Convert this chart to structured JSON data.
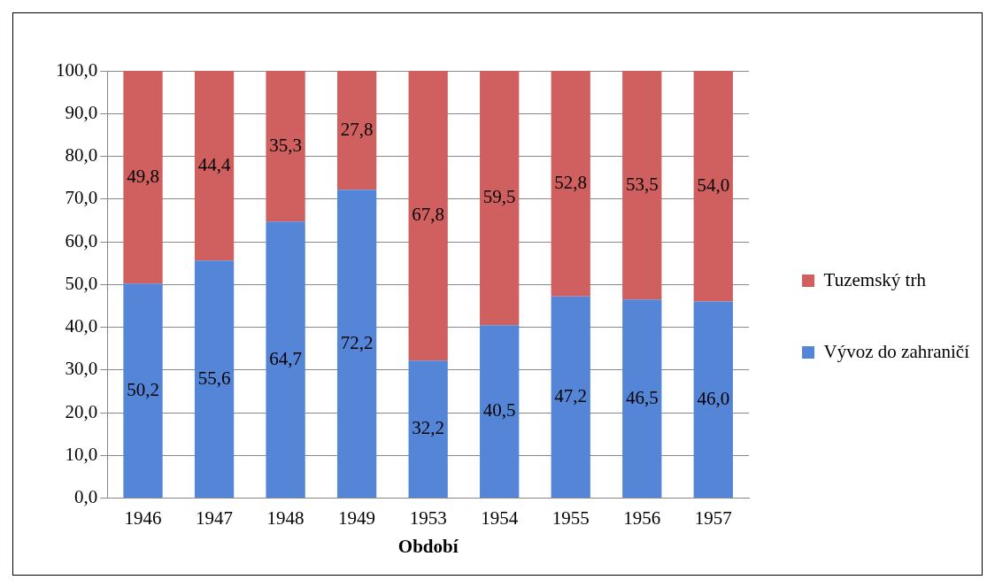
{
  "chart_data": {
    "type": "bar",
    "stacked": true,
    "xlabel": "Období",
    "categories": [
      "1946",
      "1947",
      "1948",
      "1949",
      "1953",
      "1954",
      "1955",
      "1956",
      "1957"
    ],
    "series": [
      {
        "name": "Vývoz do zahraničí",
        "color": "#5585d6",
        "values": [
          50.2,
          55.6,
          64.7,
          72.2,
          32.2,
          40.5,
          47.2,
          46.5,
          46.0
        ],
        "value_labels": [
          "50,2",
          "55,6",
          "64,7",
          "72,2",
          "32,2",
          "40,5",
          "47,2",
          "46,5",
          "46,0"
        ]
      },
      {
        "name": "Tuzemský trh",
        "color": "#d05f5f",
        "values": [
          49.8,
          44.4,
          35.3,
          27.8,
          67.8,
          59.5,
          52.8,
          53.5,
          54.0
        ],
        "value_labels": [
          "49,8",
          "44,4",
          "35,3",
          "27,8",
          "67,8",
          "59,5",
          "52,8",
          "53,5",
          "54,0"
        ]
      }
    ],
    "ylim": [
      0,
      100
    ],
    "yticks": [
      {
        "value": 0,
        "label": "0,0"
      },
      {
        "value": 10,
        "label": "10,0"
      },
      {
        "value": 20,
        "label": "20,0"
      },
      {
        "value": 30,
        "label": "30,0"
      },
      {
        "value": 40,
        "label": "40,0"
      },
      {
        "value": 50,
        "label": "50,0"
      },
      {
        "value": 60,
        "label": "60,0"
      },
      {
        "value": 70,
        "label": "70,0"
      },
      {
        "value": 80,
        "label": "80,0"
      },
      {
        "value": 90,
        "label": "90,0"
      },
      {
        "value": 100,
        "label": "100,0"
      }
    ],
    "grid": "y",
    "legend": "right"
  }
}
